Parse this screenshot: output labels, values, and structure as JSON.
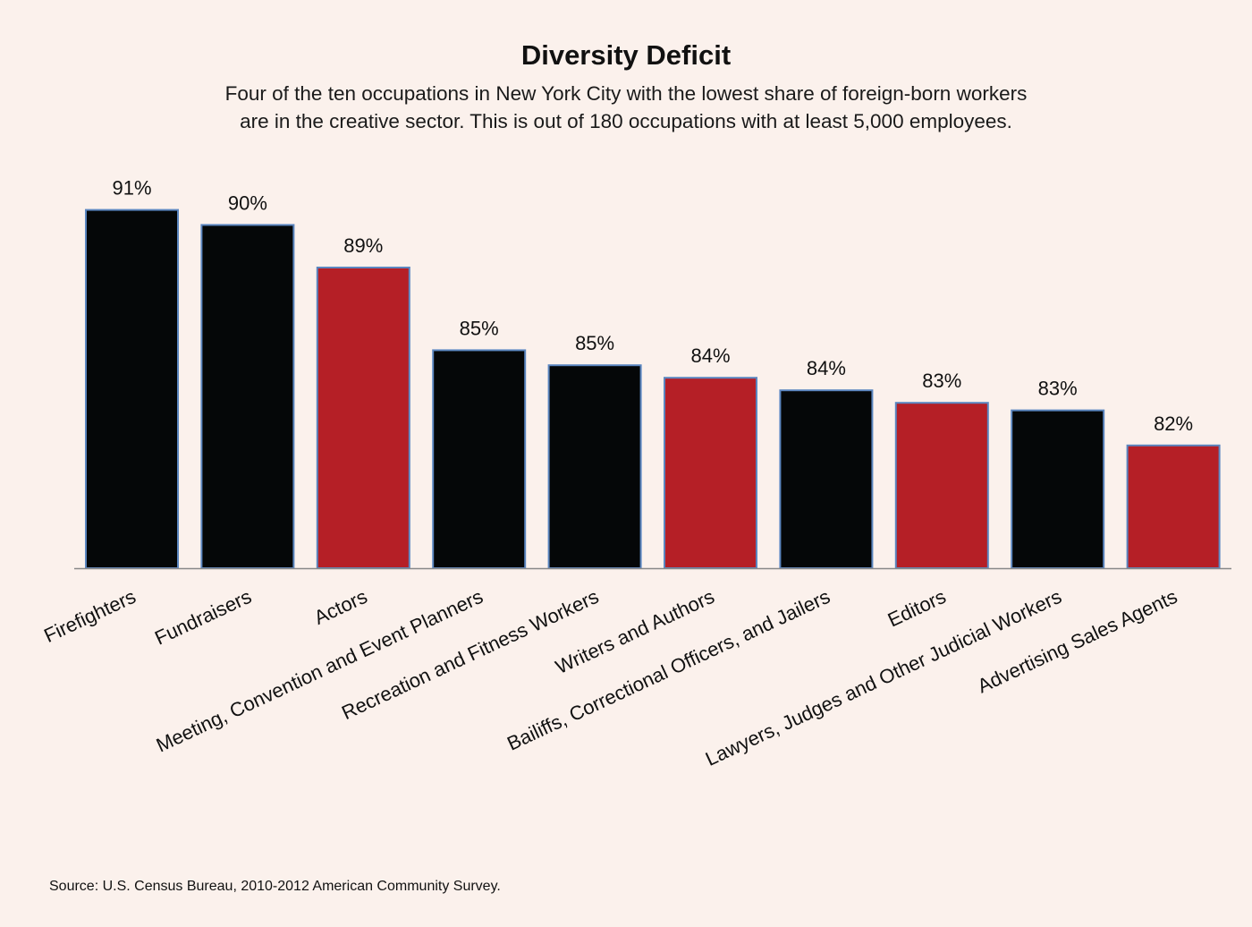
{
  "chart_data": {
    "type": "bar",
    "title": "Diversity Deficit",
    "subtitle_lines": [
      "Four of the ten occupations in New York City with the lowest share of foreign-born workers",
      "are in the creative sector. This is out of 180 occupations with at least 5,000 employees."
    ],
    "categories": [
      "Firefighters",
      "Fundraisers",
      "Actors",
      "Meeting, Convention and Event Planners",
      "Recreation and Fitness Workers",
      "Writers and Authors",
      "Bailiffs, Correctional Officers, and Jailers",
      "Editors",
      "Lawyers, Judges and Other Judicial Workers",
      "Advertising Sales Agents"
    ],
    "values": [
      91.0,
      90.4,
      88.7,
      85.4,
      84.8,
      84.3,
      83.8,
      83.3,
      83.0,
      81.6
    ],
    "data_labels": [
      "91%",
      "90%",
      "89%",
      "85%",
      "85%",
      "84%",
      "84%",
      "83%",
      "83%",
      "82%"
    ],
    "creative_sector": [
      false,
      false,
      true,
      false,
      false,
      true,
      false,
      true,
      false,
      true
    ],
    "colors": {
      "default": "#050708",
      "creative": "#b51f26",
      "outline": "#5b86c0",
      "axis": "#888888",
      "background": "#fbf1ec"
    },
    "xlabel": "",
    "ylabel": "",
    "ylim": [
      76.7,
      92
    ],
    "grid": false,
    "source": "Source: U.S. Census Bureau, 2010-2012 American Community Survey."
  }
}
